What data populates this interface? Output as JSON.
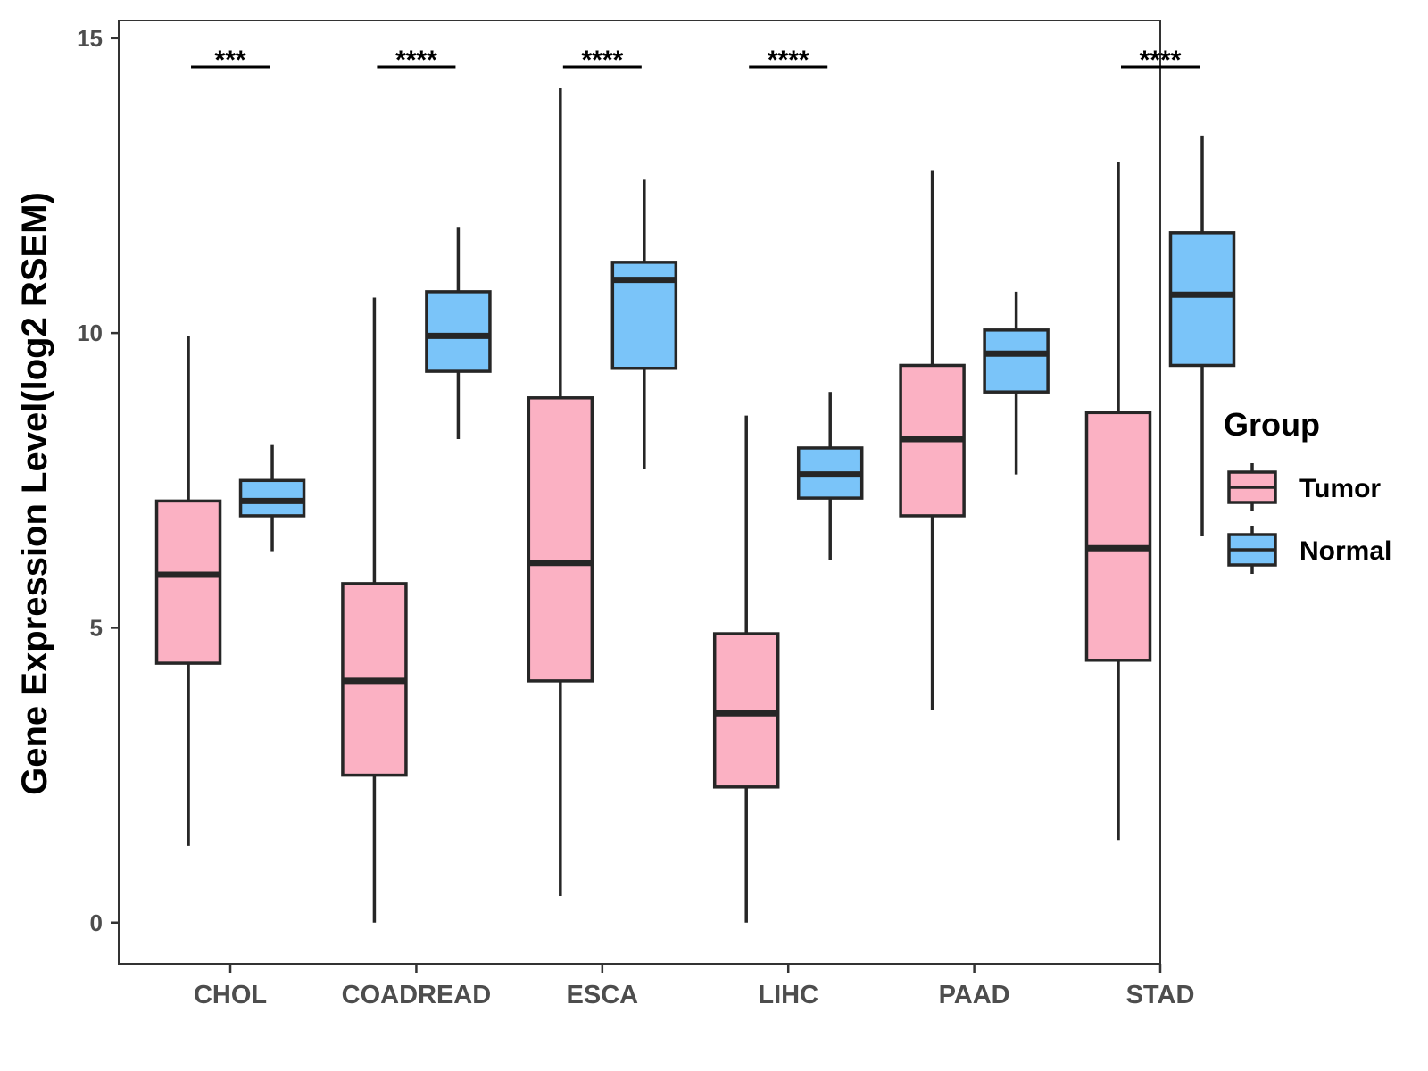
{
  "chart_data": {
    "type": "boxplot",
    "title": "",
    "xlabel": "",
    "ylabel": "Gene Expression Level(log2 RSEM)",
    "ylim": [
      -0.7,
      15.3
    ],
    "yticks": [
      0,
      5,
      10,
      15
    ],
    "grid": false,
    "categories": [
      "CHOL",
      "COADREAD",
      "ESCA",
      "LIHC",
      "PAAD",
      "STAD"
    ],
    "series": [
      {
        "name": "Tumor",
        "color": "#FBB1C3",
        "boxes": [
          {
            "min": 1.3,
            "q1": 4.4,
            "median": 5.9,
            "q3": 7.15,
            "max": 9.95
          },
          {
            "min": 0.0,
            "q1": 2.5,
            "median": 4.1,
            "q3": 5.75,
            "max": 10.6
          },
          {
            "min": 0.45,
            "q1": 4.1,
            "median": 6.1,
            "q3": 8.9,
            "max": 14.15
          },
          {
            "min": 0.0,
            "q1": 2.3,
            "median": 3.55,
            "q3": 4.9,
            "max": 8.6
          },
          {
            "min": 3.6,
            "q1": 6.9,
            "median": 8.2,
            "q3": 9.45,
            "max": 12.75
          },
          {
            "min": 1.4,
            "q1": 4.45,
            "median": 6.35,
            "q3": 8.65,
            "max": 12.9
          }
        ]
      },
      {
        "name": "Normal",
        "color": "#7AC4F9",
        "boxes": [
          {
            "min": 6.3,
            "q1": 6.9,
            "median": 7.15,
            "q3": 7.5,
            "max": 8.1
          },
          {
            "min": 8.2,
            "q1": 9.35,
            "median": 9.95,
            "q3": 10.7,
            "max": 11.8
          },
          {
            "min": 7.7,
            "q1": 9.4,
            "median": 10.9,
            "q3": 11.2,
            "max": 12.6
          },
          {
            "min": 6.15,
            "q1": 7.2,
            "median": 7.6,
            "q3": 8.05,
            "max": 9.0
          },
          {
            "min": 7.6,
            "q1": 9.0,
            "median": 9.65,
            "q3": 10.05,
            "max": 10.7
          },
          {
            "min": 6.55,
            "q1": 9.45,
            "median": 10.65,
            "q3": 11.7,
            "max": 13.35
          }
        ]
      }
    ],
    "significance": [
      {
        "category": "CHOL",
        "label": "***"
      },
      {
        "category": "COADREAD",
        "label": "****"
      },
      {
        "category": "ESCA",
        "label": "****"
      },
      {
        "category": "LIHC",
        "label": "****"
      },
      {
        "category": "PAAD",
        "label": ""
      },
      {
        "category": "STAD",
        "label": "****"
      }
    ],
    "legend": {
      "title": "Group",
      "position": "right",
      "items": [
        "Tumor",
        "Normal"
      ]
    }
  }
}
